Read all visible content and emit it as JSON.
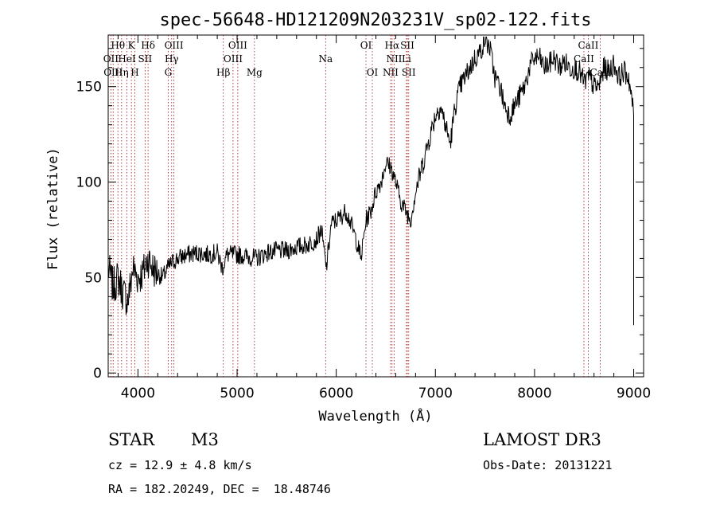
{
  "chart_data": {
    "type": "line",
    "title": "spec-56648-HD121209N203231V_sp02-122.fits",
    "xlabel": "Wavelength (Å)",
    "ylabel": "Flux (relative)",
    "xlim": [
      3700,
      9100
    ],
    "ylim": [
      -2,
      177
    ],
    "xticks": [
      4000,
      5000,
      6000,
      7000,
      8000,
      9000
    ],
    "yticks": [
      0,
      50,
      100,
      150
    ],
    "grid": false,
    "series": [
      {
        "x": [
          3700,
          3750,
          3800,
          3850,
          3900,
          3950,
          4000,
          4050,
          4100,
          4150,
          4200,
          4250,
          4300,
          4350,
          4400,
          4500,
          4600,
          4700,
          4800,
          4850,
          4900,
          5000,
          5100,
          5200,
          5300,
          5400,
          5500,
          5600,
          5700,
          5800,
          5850,
          5900,
          5950,
          6000,
          6050,
          6100,
          6150,
          6200,
          6250,
          6300,
          6350,
          6400,
          6450,
          6500,
          6550,
          6600,
          6650,
          6700,
          6750,
          6800,
          6850,
          6900,
          6950,
          7000,
          7050,
          7100,
          7150,
          7200,
          7250,
          7300,
          7350,
          7400,
          7450,
          7500,
          7550,
          7600,
          7650,
          7700,
          7750,
          7800,
          7850,
          7900,
          7950,
          8000,
          8050,
          8100,
          8150,
          8200,
          8250,
          8300,
          8350,
          8400,
          8450,
          8500,
          8550,
          8600,
          8650,
          8700,
          8750,
          8800,
          8850,
          8900,
          8950,
          9000
        ],
        "y": [
          55,
          45,
          50,
          42,
          38,
          55,
          50,
          52,
          60,
          55,
          52,
          50,
          55,
          58,
          60,
          62,
          63,
          62,
          63,
          55,
          62,
          62,
          61,
          60,
          63,
          64,
          64,
          66,
          67,
          70,
          75,
          55,
          78,
          80,
          82,
          85,
          78,
          70,
          60,
          80,
          85,
          95,
          100,
          110,
          108,
          100,
          90,
          85,
          80,
          95,
          105,
          115,
          125,
          135,
          140,
          130,
          120,
          140,
          150,
          155,
          160,
          165,
          168,
          175,
          170,
          155,
          150,
          140,
          135,
          140,
          145,
          150,
          160,
          165,
          165,
          160,
          162,
          165,
          160,
          163,
          160,
          160,
          158,
          152,
          155,
          150,
          150,
          160,
          158,
          162,
          155,
          158,
          155,
          135
        ]
      }
    ],
    "line_markers": [
      {
        "label": "Hθ",
        "x": 3798,
        "row": 1
      },
      {
        "label": "K",
        "x": 3934,
        "row": 1
      },
      {
        "label": "Hδ",
        "x": 4102,
        "row": 1
      },
      {
        "label": "OIII",
        "x": 4363,
        "row": 1
      },
      {
        "label": "OIII",
        "x": 5007,
        "row": 1
      },
      {
        "label": "OI",
        "x": 6300,
        "row": 1
      },
      {
        "label": "Hα",
        "x": 6563,
        "row": 1
      },
      {
        "label": "SII",
        "x": 6717,
        "row": 1
      },
      {
        "label": "CaII",
        "x": 8542,
        "row": 1
      },
      {
        "label": "OII",
        "x": 3727,
        "row": 2
      },
      {
        "label": "HeI",
        "x": 3889,
        "row": 2
      },
      {
        "label": "SII",
        "x": 4072,
        "row": 2
      },
      {
        "label": "Hγ",
        "x": 4340,
        "row": 2
      },
      {
        "label": "OIII",
        "x": 4959,
        "row": 2
      },
      {
        "label": "Na",
        "x": 5893,
        "row": 2
      },
      {
        "label": "NII",
        "x": 6584,
        "row": 2
      },
      {
        "label": "Li",
        "x": 6708,
        "row": 2
      },
      {
        "label": "CaII",
        "x": 8498,
        "row": 2
      },
      {
        "label": "OIII",
        "x": 3750,
        "row": 3
      },
      {
        "label": "Hη",
        "x": 3835,
        "row": 3
      },
      {
        "label": "H",
        "x": 3969,
        "row": 3
      },
      {
        "label": "G",
        "x": 4305,
        "row": 3
      },
      {
        "label": "Hβ",
        "x": 4861,
        "row": 3
      },
      {
        "label": "Mg",
        "x": 5175,
        "row": 3
      },
      {
        "label": "OI",
        "x": 6364,
        "row": 3
      },
      {
        "label": "NII",
        "x": 6548,
        "row": 3
      },
      {
        "label": "SII",
        "x": 6731,
        "row": 3
      },
      {
        "label": "CaII",
        "x": 8662,
        "row": 3
      }
    ],
    "colors": {
      "spectrum": "#000000",
      "markers": "#a01010"
    }
  },
  "info": {
    "object_class": "STAR",
    "subclass": "M3",
    "survey": "LAMOST DR3",
    "cz": "cz = 12.9 ± 4.8 km/s",
    "obs_date": "Obs-Date: 20131221",
    "coords": "RA = 182.20249, DEC =  18.48746"
  }
}
